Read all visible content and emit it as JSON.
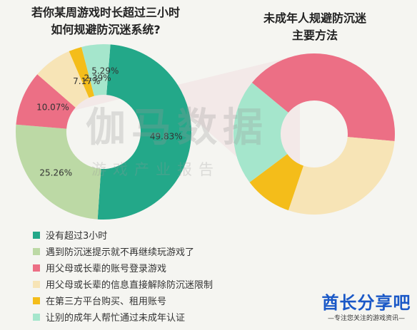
{
  "left_title": [
    "若你某周游戏时长超过三小时",
    "如何规避防沉迷系统?"
  ],
  "right_title": [
    "未成年人规避防沉迷",
    "主要方法"
  ],
  "watermark": {
    "main": "伽马数据",
    "sub": "游戏产业报告"
  },
  "legend": [
    {
      "label": "没有超过3小时",
      "color": "#23a889"
    },
    {
      "label": "遇到防沉迷提示就不再继续玩游戏了",
      "color": "#bcd9a5"
    },
    {
      "label": "用父母或长辈的账号登录游戏",
      "color": "#ec6f85"
    },
    {
      "label": "用父母或长辈的信息直接解除防沉迷限制",
      "color": "#f7e4b6"
    },
    {
      "label": "在第三方平台购买、租用账号",
      "color": "#f4bd1a"
    },
    {
      "label": "让别的成年人帮忙通过未成年认证",
      "color": "#a5e6cc"
    }
  ],
  "brand": {
    "name": "酋长分享吧",
    "slogan": "—专注您关注的游戏资讯—"
  },
  "chart_data": [
    {
      "type": "pie",
      "title": "若你某周游戏时长超过三小时 如何规避防沉迷系统?",
      "series": [
        {
          "label": "没有超过3小时",
          "value": 49.83,
          "value_label": "49.83%",
          "color": "#23a889"
        },
        {
          "label": "遇到防沉迷提示就不再继续玩游戏了",
          "value": 25.26,
          "value_label": "25.26%",
          "color": "#bcd9a5"
        },
        {
          "label": "用父母或长辈的账号登录游戏",
          "value": 10.07,
          "value_label": "10.07%",
          "color": "#ec6f85"
        },
        {
          "label": "用父母或长辈的信息直接解除防沉迷限制",
          "value": 7.17,
          "value_label": "7.17%",
          "color": "#f7e4b6"
        },
        {
          "label": "在第三方平台购买、租用账号",
          "value": 2.39,
          "value_label": "2.39%",
          "color": "#f4bd1a"
        },
        {
          "label": "让别的成年人帮忙通过未成年认证",
          "value": 5.29,
          "value_label": "5.29%",
          "color": "#a5e6cc"
        }
      ]
    },
    {
      "type": "pie",
      "title": "未成年人规避防沉迷 主要方法",
      "series": [
        {
          "label": "用父母或长辈的账号登录游戏",
          "value": 10.07,
          "color": "#ec6f85"
        },
        {
          "label": "用父母或长辈的信息直接解除防沉迷限制",
          "value": 7.17,
          "color": "#f7e4b6"
        },
        {
          "label": "在第三方平台购买、租用账号",
          "value": 2.39,
          "color": "#f4bd1a"
        },
        {
          "label": "让别的成年人帮忙通过未成年认证",
          "value": 5.29,
          "color": "#a5e6cc"
        }
      ]
    }
  ]
}
